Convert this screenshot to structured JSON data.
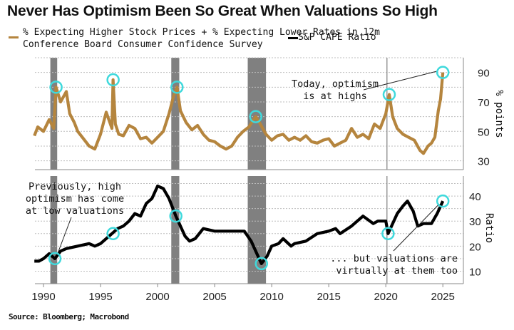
{
  "title": "Never Has Optimism Been So Great When Valuations So High",
  "legend": {
    "series1_line1": "% Expecting Higher Stock Prices + % Expecting Lower Rates in 12m",
    "series1_line2": "Conference Board Consumer Confidence Survey",
    "series2": "S&P CAPE Ratio"
  },
  "source": "Source: Bloomberg; Macrobond",
  "colors": {
    "optimism": "#b5853e",
    "cape": "#000000",
    "highlight": "#3fd9dc",
    "recession": "#808080",
    "grid": "#bdbdbd"
  },
  "chart_data": [
    {
      "type": "line",
      "panel": "top",
      "series": [
        {
          "name": "% Expecting Higher Stock Prices + % Expecting Lower Rates in 12m",
          "x": [
            1989.2,
            1989.5,
            1990.0,
            1990.5,
            1990.9,
            1991.1,
            1991.5,
            1992.0,
            1992.3,
            1992.7,
            1993.0,
            1993.5,
            1994.0,
            1994.5,
            1995.0,
            1995.5,
            1996.0,
            1996.1,
            1996.3,
            1996.6,
            1997.0,
            1997.5,
            1998.0,
            1998.5,
            1999.0,
            1999.5,
            2000.0,
            2000.5,
            2001.0,
            2001.4,
            2001.7,
            2002.0,
            2002.5,
            2003.0,
            2003.5,
            2004.0,
            2004.5,
            2005.0,
            2005.5,
            2006.0,
            2006.5,
            2007.0,
            2007.5,
            2008.0,
            2008.6,
            2009.0,
            2009.5,
            2010.0,
            2010.5,
            2011.0,
            2011.5,
            2012.0,
            2012.5,
            2013.0,
            2013.5,
            2014.0,
            2014.5,
            2015.0,
            2015.5,
            2016.0,
            2016.5,
            2017.0,
            2017.5,
            2018.0,
            2018.5,
            2019.0,
            2019.5,
            2020.0,
            2020.3,
            2020.6,
            2021.0,
            2021.5,
            2022.0,
            2022.5,
            2023.0,
            2023.3,
            2023.7,
            2024.0,
            2024.3,
            2024.6,
            2024.8,
            2025.0
          ],
          "y": [
            47,
            53,
            50,
            58,
            52,
            80,
            70,
            77,
            62,
            56,
            50,
            45,
            40,
            38,
            48,
            63,
            52,
            85,
            55,
            48,
            47,
            54,
            52,
            45,
            46,
            42,
            46,
            50,
            62,
            74,
            80,
            64,
            56,
            51,
            54,
            48,
            44,
            43,
            40,
            38,
            40,
            46,
            50,
            53,
            60,
            55,
            48,
            44,
            47,
            48,
            44,
            46,
            44,
            47,
            43,
            42,
            44,
            45,
            40,
            42,
            44,
            52,
            46,
            48,
            45,
            55,
            52,
            62,
            75,
            60,
            52,
            48,
            46,
            44,
            37,
            35,
            40,
            42,
            46,
            64,
            72,
            90
          ]
        }
      ],
      "ylabel": "% points",
      "yticks": [
        30,
        50,
        70,
        90
      ],
      "ylim": [
        24,
        100
      ],
      "highlights_x": [
        1991.1,
        1996.1,
        2001.7,
        2008.6,
        2020.3,
        2025.0
      ],
      "annotation": "Today, optimism is at highs"
    },
    {
      "type": "line",
      "panel": "bottom",
      "series": [
        {
          "name": "S&P CAPE Ratio",
          "x": [
            1989.2,
            1989.6,
            1990.0,
            1990.5,
            1991.0,
            1991.5,
            1992.0,
            1993.0,
            1994.0,
            1994.5,
            1995.0,
            1995.5,
            1996.0,
            1996.5,
            1997.0,
            1997.5,
            1998.0,
            1998.5,
            1999.0,
            1999.5,
            2000.0,
            2000.5,
            2001.0,
            2001.6,
            2002.0,
            2002.4,
            2002.8,
            2003.3,
            2004.0,
            2005.0,
            2006.0,
            2007.0,
            2007.6,
            2008.2,
            2008.7,
            2009.1,
            2009.6,
            2010.0,
            2010.6,
            2011.0,
            2011.7,
            2012.0,
            2013.0,
            2014.0,
            2015.0,
            2015.6,
            2016.0,
            2017.0,
            2018.0,
            2018.9,
            2019.3,
            2020.0,
            2020.2,
            2020.6,
            2021.0,
            2021.5,
            2021.9,
            2022.4,
            2022.8,
            2023.3,
            2024.0,
            2024.5,
            2025.0
          ],
          "y": [
            14,
            14,
            15,
            17,
            15,
            18,
            19,
            20,
            21,
            20,
            21,
            23,
            25,
            27,
            28,
            30,
            33,
            32,
            37,
            39,
            44,
            43,
            39,
            32,
            28,
            24,
            22,
            23,
            27,
            26,
            26,
            26,
            26,
            22,
            17,
            13,
            16,
            20,
            21,
            23,
            20,
            21,
            22,
            25,
            26,
            27,
            25,
            28,
            32,
            29,
            30,
            30,
            25,
            29,
            33,
            36,
            38,
            34,
            28,
            29,
            29,
            33,
            38
          ]
        }
      ],
      "ylabel": "Ratio",
      "yticks": [
        10,
        20,
        30,
        40
      ],
      "ylim": [
        5,
        48
      ],
      "highlights_x": [
        1991.0,
        1996.1,
        2001.6,
        2009.1,
        2020.2,
        2025.0
      ],
      "annotations": [
        "Previously, high optimism has come at low valuations",
        "... but valuations are virtually at them too"
      ]
    }
  ],
  "x_axis": {
    "ticks": [
      1990,
      1995,
      2000,
      2005,
      2010,
      2015,
      2020,
      2025
    ],
    "xlim": [
      1988.0,
      2026.8
    ]
  },
  "recessions": [
    [
      1990.6,
      1991.2
    ],
    [
      2001.2,
      2001.9
    ],
    [
      2007.9,
      2009.5
    ]
  ],
  "event_line_x": 2020.1,
  "text": {
    "annot_top_1": "Today, optimism",
    "annot_top_2": "is at highs",
    "annot_bl_1": "Previously, high",
    "annot_bl_2": "optimism has come",
    "annot_bl_3": "at low valuations",
    "annot_br_1": "... but valuations are",
    "annot_br_2": "virtually at them too",
    "ylabel_top": "% points",
    "ylabel_bottom": "Ratio"
  }
}
